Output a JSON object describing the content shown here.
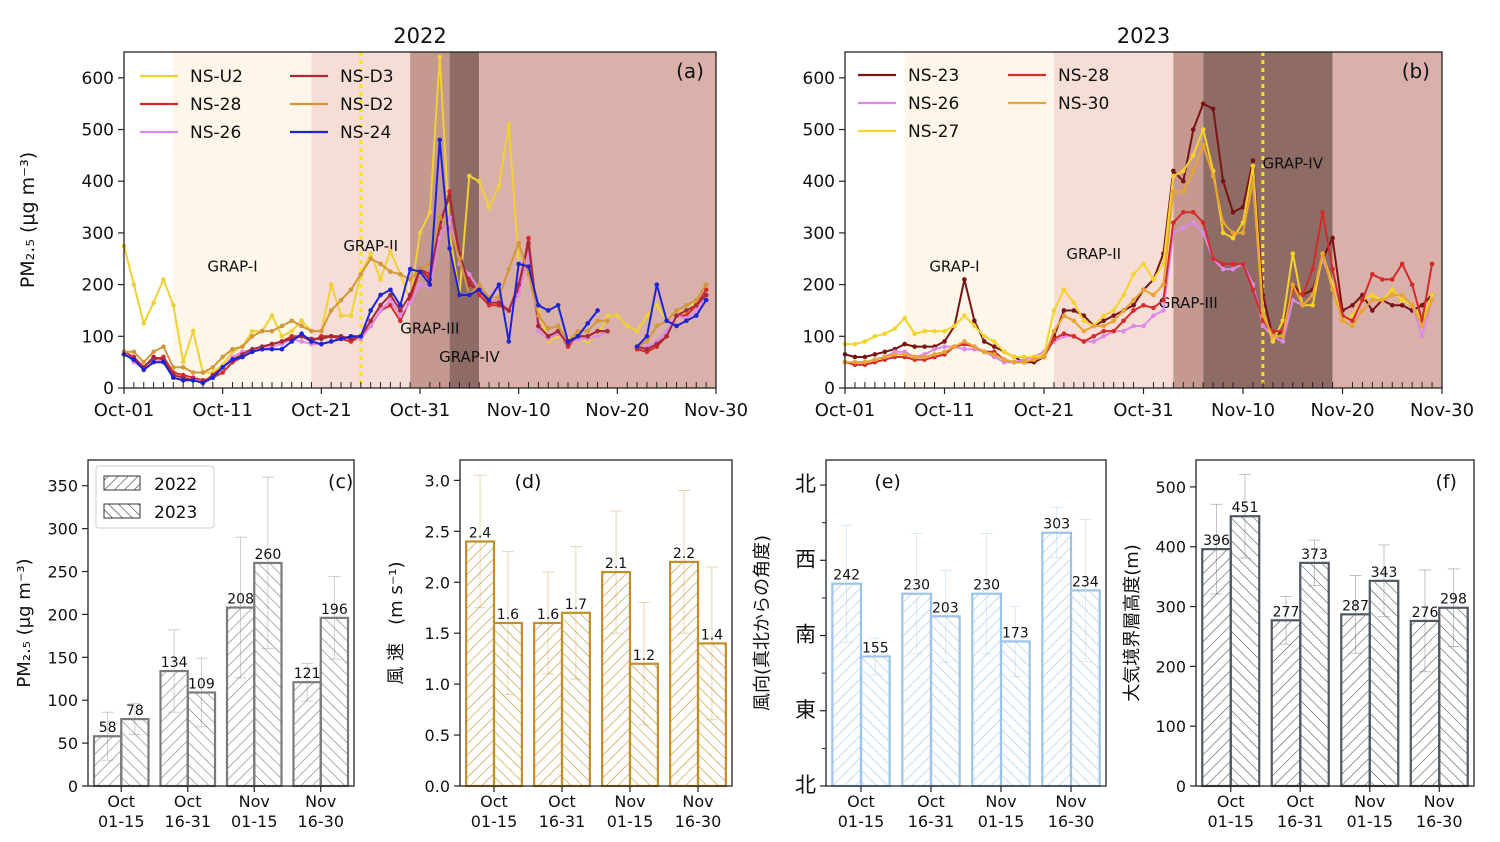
{
  "figure": {
    "panel_a": {
      "title": "2022",
      "tag": "(a)",
      "ylabel": "PM₂.₅ (μg m⁻³)",
      "yticks": [
        0,
        100,
        200,
        300,
        400,
        500,
        600
      ],
      "xtick_labels": [
        "Oct-01",
        "Oct-11",
        "Oct-21",
        "Oct-31",
        "Nov-10",
        "Nov-20",
        "Nov-30"
      ],
      "stages": [
        {
          "label": "GRAP-I",
          "start": 5,
          "end": 19,
          "color": "#fdf6e9"
        },
        {
          "label": "GRAP-II",
          "start": 19,
          "end": 29,
          "color": "#f6ddd6"
        },
        {
          "label": "GRAP-III",
          "start": 29,
          "end": 33,
          "color": "#c59890"
        },
        {
          "label": "GRAP-IV",
          "start": 33,
          "end": 36,
          "color": "#8f6b66"
        },
        {
          "label": "",
          "start": 36,
          "end": 60,
          "color": "#d9b1aa"
        }
      ],
      "stage_labels": [
        {
          "text": "GRAP-I",
          "x": 11,
          "y": 225
        },
        {
          "text": "GRAP-II",
          "x": 25,
          "y": 265
        },
        {
          "text": "GRAP-III",
          "x": 31,
          "y": 105
        },
        {
          "text": "GRAP-IV",
          "x": 35,
          "y": 50
        }
      ],
      "vline_day": 24,
      "legend": [
        "NS-U2",
        "NS-28",
        "NS-26",
        "NS-D3",
        "NS-D2",
        "NS-24"
      ]
    },
    "panel_b": {
      "title": "2023",
      "tag": "(b)",
      "yticks": [
        0,
        100,
        200,
        300,
        400,
        500,
        600
      ],
      "xtick_labels": [
        "Oct-01",
        "Oct-11",
        "Oct-21",
        "Oct-31",
        "Nov-10",
        "Nov-20",
        "Nov-30"
      ],
      "stages": [
        {
          "label": "GRAP-I",
          "start": 6,
          "end": 21,
          "color": "#fdf6e9"
        },
        {
          "label": "GRAP-II",
          "start": 21,
          "end": 33,
          "color": "#f6ddd6"
        },
        {
          "label": "GRAP-III",
          "start": 33,
          "end": 36,
          "color": "#c59890"
        },
        {
          "label": "GRAP-IV",
          "start": 36,
          "end": 49,
          "color": "#8f6b66"
        },
        {
          "label": "",
          "start": 49,
          "end": 60,
          "color": "#d9b1aa"
        }
      ],
      "stage_labels": [
        {
          "text": "GRAP-I",
          "x": 11,
          "y": 225
        },
        {
          "text": "GRAP-II",
          "x": 25,
          "y": 250
        },
        {
          "text": "GRAP-III",
          "x": 34.5,
          "y": 155
        },
        {
          "text": "GRAP-IV",
          "x": 45,
          "y": 425
        }
      ],
      "vline_day": 42,
      "legend": [
        "NS-23",
        "NS-26",
        "NS-27",
        "NS-28",
        "NS-30"
      ]
    },
    "bar_categories": [
      [
        "Oct",
        "01-15"
      ],
      [
        "Oct",
        "16-31"
      ],
      [
        "Nov",
        "01-15"
      ],
      [
        "Nov",
        "16-30"
      ]
    ],
    "panel_c": {
      "tag": "(c)",
      "ylabel": "PM₂.₅ (μg m⁻³)",
      "yticks": [
        0,
        50,
        100,
        150,
        200,
        250,
        300,
        350
      ],
      "legend": [
        "2022",
        "2023"
      ]
    },
    "panel_d": {
      "tag": "(d)",
      "ylabel": "風 速　(m s⁻¹)",
      "yticks": [
        "0.0",
        "0.5",
        "1.0",
        "1.5",
        "2.0",
        "2.5",
        "3.0"
      ]
    },
    "panel_e": {
      "tag": "(e)",
      "ylabel": "風向(真北からの角度)",
      "ytick_labels": [
        "北",
        "東",
        "南",
        "西",
        "北"
      ]
    },
    "panel_f": {
      "tag": "(f)",
      "ylabel": "大気境界層高度(m)",
      "yticks": [
        0,
        100,
        200,
        300,
        400,
        500
      ]
    }
  },
  "colors": {
    "NS-U2": "#f0d133",
    "NS-28": "#d42a2a",
    "NS-26": "#dc8ae6",
    "NS-D3": "#a52a3a",
    "NS-D2": "#d2963c",
    "NS-24": "#1c24d4",
    "NS-23": "#7a1414",
    "NS-27": "#f5d42a",
    "NS-30": "#e8a532",
    "pm_bar": "#7a7a7a",
    "wind_bar": "#c18f2a",
    "dir_bar": "#9cc4ea",
    "pbl_bar": "#505863"
  },
  "chart_data": [
    {
      "type": "line",
      "panel": "a",
      "title": "2022",
      "ylabel": "PM₂.₅ (μg m⁻³)",
      "ylim": [
        0,
        650
      ],
      "x_start": "Oct-01",
      "x_step": "1 day",
      "series": [
        {
          "name": "NS-U2",
          "values": [
            275,
            200,
            125,
            165,
            210,
            160,
            50,
            110,
            30,
            30,
            45,
            70,
            80,
            110,
            110,
            140,
            100,
            110,
            130,
            110,
            110,
            200,
            140,
            140,
            220,
            260,
            210,
            265,
            220,
            170,
            300,
            340,
            640,
            300,
            180,
            410,
            400,
            350,
            390,
            510,
            240,
            235,
            150,
            90,
            100,
            95,
            95,
            90,
            100,
            140,
            140,
            120,
            110,
            140,
            160,
            130,
            150,
            145,
            170,
            200
          ]
        },
        {
          "name": "NS-28",
          "values": [
            70,
            60,
            40,
            55,
            60,
            30,
            25,
            20,
            15,
            20,
            30,
            50,
            60,
            70,
            80,
            85,
            90,
            100,
            100,
            90,
            100,
            100,
            95,
            90,
            100,
            120,
            150,
            160,
            130,
            170,
            230,
            220,
            310,
            380,
            250,
            210,
            180,
            160,
            160,
            150,
            190,
            290,
            120,
            100,
            110,
            80,
            100,
            100,
            110,
            110,
            null,
            null,
            75,
            70,
            80,
            100,
            140,
            140,
            160,
            190
          ]
        },
        {
          "name": "NS-26",
          "values": [
            70,
            50,
            40,
            50,
            55,
            20,
            15,
            15,
            10,
            20,
            40,
            60,
            70,
            75,
            75,
            80,
            85,
            95,
            90,
            85,
            85,
            90,
            95,
            100,
            95,
            120,
            150,
            170,
            140,
            165,
            200,
            195,
            290,
            330,
            240,
            220,
            190,
            170,
            170,
            150,
            180,
            260,
            110,
            95,
            105,
            85,
            95,
            95,
            100,
            110,
            null,
            null,
            80,
            80,
            90,
            110,
            140,
            135,
            150,
            175
          ]
        },
        {
          "name": "NS-D3",
          "values": [
            65,
            55,
            40,
            60,
            55,
            25,
            20,
            15,
            10,
            25,
            40,
            55,
            65,
            75,
            80,
            85,
            90,
            95,
            100,
            95,
            95,
            100,
            100,
            95,
            100,
            130,
            160,
            180,
            150,
            180,
            230,
            210,
            320,
            370,
            260,
            200,
            190,
            165,
            165,
            150,
            200,
            280,
            120,
            100,
            110,
            85,
            100,
            100,
            110,
            110,
            null,
            null,
            80,
            75,
            85,
            100,
            140,
            150,
            160,
            180
          ]
        },
        {
          "name": "NS-D2",
          "values": [
            70,
            70,
            50,
            70,
            80,
            40,
            40,
            30,
            30,
            40,
            60,
            75,
            80,
            100,
            110,
            110,
            120,
            130,
            120,
            110,
            110,
            150,
            170,
            190,
            220,
            250,
            240,
            225,
            220,
            210,
            230,
            240,
            330,
            310,
            250,
            180,
            200,
            175,
            175,
            230,
            280,
            220,
            140,
            115,
            120,
            90,
            110,
            110,
            130,
            130,
            null,
            null,
            80,
            90,
            120,
            130,
            150,
            160,
            170,
            200
          ]
        },
        {
          "name": "NS-24",
          "values": [
            65,
            55,
            35,
            50,
            50,
            20,
            15,
            15,
            10,
            20,
            40,
            55,
            60,
            70,
            75,
            75,
            75,
            90,
            105,
            90,
            85,
            90,
            95,
            100,
            100,
            150,
            180,
            190,
            160,
            230,
            225,
            200,
            480,
            270,
            180,
            180,
            190,
            170,
            200,
            90,
            240,
            235,
            160,
            150,
            160,
            90,
            100,
            125,
            150,
            null,
            null,
            null,
            80,
            100,
            200,
            130,
            120,
            130,
            140,
            170
          ]
        }
      ]
    },
    {
      "type": "line",
      "panel": "b",
      "title": "2023",
      "ylim": [
        0,
        650
      ],
      "x_start": "Oct-01",
      "x_step": "1 day",
      "series": [
        {
          "name": "NS-23",
          "values": [
            65,
            60,
            60,
            65,
            70,
            75,
            85,
            80,
            80,
            80,
            90,
            120,
            210,
            130,
            90,
            80,
            70,
            60,
            50,
            50,
            60,
            100,
            150,
            150,
            140,
            120,
            130,
            140,
            150,
            160,
            190,
            210,
            260,
            420,
            400,
            500,
            550,
            540,
            400,
            340,
            350,
            440,
            180,
            100,
            110,
            200,
            180,
            190,
            250,
            290,
            150,
            160,
            180,
            150,
            170,
            160,
            160,
            150,
            160,
            180
          ]
        },
        {
          "name": "NS-26",
          "values": [
            50,
            50,
            50,
            55,
            60,
            70,
            70,
            60,
            65,
            75,
            80,
            80,
            75,
            75,
            70,
            60,
            50,
            50,
            55,
            60,
            70,
            90,
            100,
            100,
            90,
            90,
            100,
            110,
            110,
            120,
            120,
            140,
            150,
            300,
            310,
            320,
            300,
            250,
            230,
            230,
            240,
            200,
            120,
            100,
            90,
            170,
            160,
            180,
            250,
            200,
            140,
            130,
            150,
            170,
            170,
            180,
            180,
            160,
            100,
            170
          ]
        },
        {
          "name": "NS-27",
          "values": [
            85,
            85,
            90,
            100,
            105,
            115,
            135,
            105,
            110,
            110,
            110,
            120,
            140,
            120,
            100,
            90,
            70,
            60,
            60,
            60,
            65,
            150,
            190,
            165,
            130,
            120,
            140,
            150,
            180,
            220,
            240,
            210,
            240,
            410,
            420,
            450,
            500,
            420,
            300,
            290,
            320,
            430,
            150,
            90,
            130,
            260,
            160,
            160,
            260,
            200,
            130,
            140,
            170,
            180,
            170,
            190,
            170,
            160,
            130,
            180
          ]
        },
        {
          "name": "NS-28",
          "values": [
            50,
            45,
            45,
            50,
            55,
            60,
            60,
            55,
            55,
            60,
            65,
            80,
            85,
            80,
            70,
            70,
            55,
            50,
            50,
            55,
            60,
            95,
            105,
            100,
            90,
            100,
            110,
            110,
            130,
            150,
            160,
            155,
            170,
            320,
            340,
            340,
            320,
            250,
            240,
            240,
            240,
            190,
            130,
            110,
            110,
            190,
            180,
            230,
            340,
            230,
            140,
            130,
            170,
            220,
            210,
            210,
            240,
            200,
            130,
            240
          ]
        },
        {
          "name": "NS-30",
          "values": [
            50,
            50,
            50,
            55,
            60,
            65,
            65,
            60,
            60,
            65,
            70,
            80,
            90,
            80,
            70,
            65,
            55,
            50,
            50,
            55,
            60,
            110,
            140,
            130,
            110,
            120,
            120,
            130,
            150,
            170,
            190,
            180,
            200,
            380,
            380,
            420,
            470,
            410,
            320,
            300,
            300,
            400,
            140,
            100,
            100,
            200,
            160,
            180,
            260,
            190,
            130,
            120,
            150,
            170,
            170,
            180,
            180,
            160,
            120,
            170
          ]
        }
      ]
    },
    {
      "type": "bar",
      "panel": "c",
      "categories": [
        "Oct 01-15",
        "Oct 16-31",
        "Nov 01-15",
        "Nov 16-30"
      ],
      "ylabel": "PM₂.₅ (μg m⁻³)",
      "ylim": [
        0,
        380
      ],
      "series": [
        {
          "name": "2022",
          "values": [
            58,
            134,
            208,
            121
          ],
          "err": [
            28,
            48,
            82,
            22
          ]
        },
        {
          "name": "2023",
          "values": [
            78,
            109,
            260,
            196
          ],
          "err": [
            18,
            40,
            100,
            48
          ]
        }
      ]
    },
    {
      "type": "bar",
      "panel": "d",
      "categories": [
        "Oct 01-15",
        "Oct 16-31",
        "Nov 01-15",
        "Nov 16-30"
      ],
      "ylabel": "風 速　(m s⁻¹)",
      "ylim": [
        0,
        3.2
      ],
      "series": [
        {
          "name": "2022",
          "values": [
            2.4,
            1.6,
            2.1,
            2.2
          ],
          "err": [
            0.65,
            0.5,
            0.6,
            0.7
          ]
        },
        {
          "name": "2023",
          "values": [
            1.6,
            1.7,
            1.2,
            1.4
          ],
          "err": [
            0.7,
            0.65,
            0.6,
            0.75
          ]
        }
      ]
    },
    {
      "type": "bar",
      "panel": "e",
      "categories": [
        "Oct 01-15",
        "Oct 16-31",
        "Nov 01-15",
        "Nov 16-30"
      ],
      "ylabel": "風向(真北からの角度)",
      "ylim": [
        0,
        390
      ],
      "series": [
        {
          "name": "2022",
          "values": [
            242,
            230,
            230,
            303
          ],
          "err": [
            70,
            72,
            72,
            30
          ]
        },
        {
          "name": "2023",
          "values": [
            155,
            203,
            173,
            234
          ],
          "err": [
            22,
            55,
            42,
            85
          ]
        }
      ]
    },
    {
      "type": "bar",
      "panel": "f",
      "categories": [
        "Oct 01-15",
        "Oct 16-31",
        "Nov 01-15",
        "Nov 16-30"
      ],
      "ylabel": "大気境界層高度(m)",
      "ylim": [
        0,
        545
      ],
      "series": [
        {
          "name": "2022",
          "values": [
            396,
            277,
            287,
            276
          ],
          "err": [
            75,
            40,
            65,
            85
          ]
        },
        {
          "name": "2023",
          "values": [
            451,
            373,
            343,
            298
          ],
          "err": [
            70,
            38,
            60,
            65
          ]
        }
      ]
    }
  ]
}
